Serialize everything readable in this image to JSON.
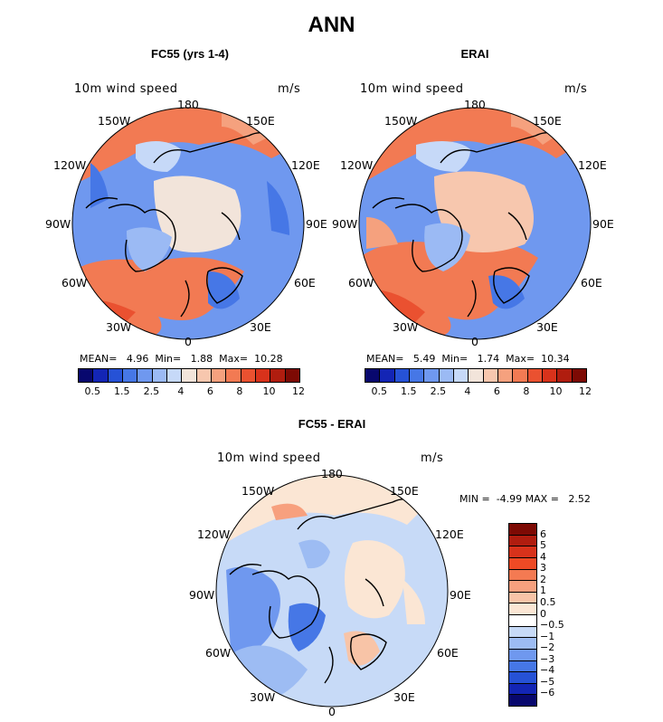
{
  "main_title": "ANN",
  "panels": [
    {
      "id": "fc55",
      "title": "FC55 (yrs 1-4)",
      "var_label": "10m wind speed",
      "units": "m/s",
      "stats": {
        "mean_label": "MEAN=",
        "mean": "4.96",
        "min_label": "Min=",
        "min": "1.88",
        "max_label": "Max=",
        "max": "10.28"
      }
    },
    {
      "id": "erai",
      "title": "ERAI",
      "var_label": "10m wind speed",
      "units": "m/s",
      "stats": {
        "mean_label": "MEAN=",
        "mean": "5.49",
        "min_label": "Min=",
        "min": "1.74",
        "max_label": "Max=",
        "max": "10.34"
      }
    },
    {
      "id": "diff",
      "title": "FC55 - ERAI",
      "var_label": "10m wind speed",
      "units": "m/s",
      "stats": {
        "min_label": "MIN =",
        "min": "-4.99",
        "max_label": "MAX =",
        "max": "2.52"
      }
    }
  ],
  "longitude_labels": {
    "top": "180",
    "ul": "150W",
    "ur": "150E",
    "l1": "120W",
    "r1": "120E",
    "l2": "90W",
    "r2": "90E",
    "l3": "60W",
    "r3": "60E",
    "bl": "30W",
    "br": "30E",
    "bottom": "0"
  },
  "colorbar_main": {
    "colors": [
      "#08086e",
      "#1325b5",
      "#2652d6",
      "#4677e6",
      "#6f98ef",
      "#9bbaf4",
      "#c6d9f8",
      "#f2e4da",
      "#f7c7ae",
      "#f5a17e",
      "#f27a53",
      "#ea5130",
      "#d8321b",
      "#b01d0f",
      "#7d0a04"
    ],
    "tick_labels": [
      "0.5",
      "1.5",
      "2.5",
      "4",
      "6",
      "8",
      "10",
      "12"
    ]
  },
  "colorbar_diff": {
    "colors_top_to_bottom": [
      "#7d0a04",
      "#b01d0f",
      "#d8321b",
      "#ee4a25",
      "#f47a52",
      "#f7a07e",
      "#f8c4a7",
      "#fbe6d4",
      "#ffffff",
      "#c7daf7",
      "#9dbcf3",
      "#6f98ef",
      "#4677e6",
      "#2652d6",
      "#1325b5",
      "#08086e"
    ],
    "tick_labels": [
      "6",
      "5",
      "4",
      "3",
      "2",
      "1",
      "0.5",
      "0",
      "−0.5",
      "−1",
      "−2",
      "−3",
      "−4",
      "−5",
      "−6"
    ]
  },
  "colors": {
    "land_outline": "#000000",
    "ocean_blue": "#6f98ef",
    "warm": "#f27a53"
  }
}
